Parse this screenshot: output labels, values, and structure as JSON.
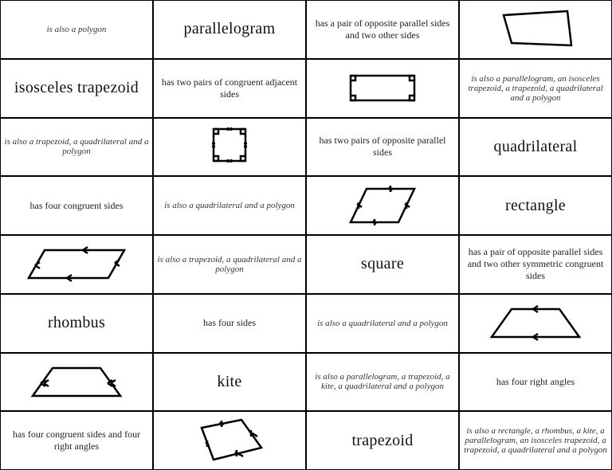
{
  "grid_color": "#000000",
  "bg_color": "#ffffff",
  "stroke": "#000000",
  "cells": [
    {
      "type": "ital",
      "text": "is also a polygon"
    },
    {
      "type": "term",
      "text": "parallelogram"
    },
    {
      "type": "desc",
      "text": "has a pair of opposite parallel sides and two other sides"
    },
    {
      "type": "shape",
      "shape": "quadrilateral"
    },
    {
      "type": "term",
      "text": "isosceles trapezoid"
    },
    {
      "type": "desc",
      "text": "has two pairs\nof congruent adjacent sides"
    },
    {
      "type": "shape",
      "shape": "rectangle"
    },
    {
      "type": "ital",
      "text": "is also a parallelogram, an isosceles trapezoid, a trapezoid, a quadrilateral and a polygon"
    },
    {
      "type": "ital",
      "text": "is also a trapezoid, a quadrilateral and a polygon"
    },
    {
      "type": "shape",
      "shape": "square"
    },
    {
      "type": "desc",
      "text": "has two pairs of opposite parallel sides"
    },
    {
      "type": "term",
      "text": "quadrilateral"
    },
    {
      "type": "desc",
      "text": "has four congruent sides"
    },
    {
      "type": "ital",
      "text": "is also a quadrilateral and a polygon"
    },
    {
      "type": "shape",
      "shape": "parallelogram_ticks"
    },
    {
      "type": "term",
      "text": "rectangle"
    },
    {
      "type": "shape",
      "shape": "parallelogram_arrows"
    },
    {
      "type": "ital",
      "text": "is also a trapezoid, a quadrilateral and a polygon"
    },
    {
      "type": "term",
      "text": "square"
    },
    {
      "type": "desc",
      "text": "has a pair of opposite parallel sides and two other symmetric congruent sides"
    },
    {
      "type": "term",
      "text": "rhombus"
    },
    {
      "type": "desc",
      "text": "has four sides"
    },
    {
      "type": "ital",
      "text": "is also a quadrilateral and a polygon"
    },
    {
      "type": "shape",
      "shape": "trapezoid_arrows"
    },
    {
      "type": "shape",
      "shape": "iso_trapezoid"
    },
    {
      "type": "term",
      "text": "kite"
    },
    {
      "type": "ital",
      "text": "is also a parallelogram, a trapezoid, a kite, a quadrilateral and a polygon"
    },
    {
      "type": "desc",
      "text": "has four right angles"
    },
    {
      "type": "desc",
      "text": "has four congruent sides and four right angles"
    },
    {
      "type": "shape",
      "shape": "kite"
    },
    {
      "type": "term",
      "text": "trapezoid"
    },
    {
      "type": "ital",
      "text": "is also a rectangle, a rhombus, a kite, a parallelogram, an isosceles trapezoid, a trapezoid, a quadrilateral and a polygon"
    }
  ],
  "shapes": {
    "quadrilateral": {
      "w": 110,
      "h": 55,
      "sw": 2.5,
      "paths": [
        "M15,10 L95,5 L100,48 L25,45 Z"
      ]
    },
    "rectangle": {
      "w": 110,
      "h": 55,
      "sw": 2.5,
      "paths": [
        "M15,12 L95,12 L95,43 L15,43 Z",
        "M15,12 L21,12 L21,18 L15,18",
        "M95,12 L89,12 L89,18 L95,18",
        "M95,43 L89,43 L89,37 L95,37",
        "M15,43 L21,43 L21,37 L15,37"
      ]
    },
    "square": {
      "w": 70,
      "h": 60,
      "sw": 2.5,
      "paths": [
        "M15,8 L55,8 L55,48 L15,48 Z",
        "M15,8 L21,8 L21,14 L15,14",
        "M55,8 L49,8 L49,14 L55,14",
        "M55,48 L49,48 L49,42 L55,42",
        "M15,48 L21,48 L21,42 L15,42",
        "M33,8 L37,8 M33,6 L33,10 M37,6 L37,10",
        "M33,48 L37,48 M33,46 L33,50 M37,46 L37,50",
        "M15,26 L15,30 M13,26 L17,26 M13,30 L17,30",
        "M55,26 L55,30 M53,26 L57,26 M53,30 L57,30"
      ]
    },
    "parallelogram_ticks": {
      "w": 100,
      "h": 58,
      "sw": 2.5,
      "paths": [
        "M30,8 L90,8 L70,50 L10,50 Z",
        "M58,6 L62,10 M60,4 L60,12",
        "M38,48 L42,52 M40,46 L40,54",
        "M18,27 L24,31 M20,25 L20,33",
        "M78,27 L84,31 M80,25 L80,33"
      ]
    },
    "parallelogram_arrows": {
      "w": 140,
      "h": 55,
      "sw": 2.5,
      "paths": [
        "M30,10 L130,10 L110,45 L10,45 Z",
        "M78,10 L84,6 M78,10 L84,14",
        "M58,45 L64,41 M58,45 L64,49",
        "M18,29 L24,25 M18,29 L24,33",
        "M118,26 L124,22 M118,26 L124,30"
      ]
    },
    "trapezoid_arrows": {
      "w": 130,
      "h": 55,
      "sw": 2.5,
      "paths": [
        "M35,10 L95,10 L120,45 L10,45 Z",
        "M62,10 L68,6 M62,10 L68,14",
        "M62,45 L68,41 M62,45 L68,49"
      ]
    },
    "iso_trapezoid": {
      "w": 130,
      "h": 55,
      "sw": 2.5,
      "paths": [
        "M35,10 L95,10 L120,45 L10,45 Z",
        "M20,29 L26,25 M20,29 L26,33 M24,29 L30,25 M24,29 L30,33",
        "M104,29 L110,25 M104,29 L110,33 M108,29 L114,25 M108,29 L114,33"
      ]
    },
    "kite": {
      "w": 110,
      "h": 62,
      "sw": 2.5,
      "paths": [
        "M20,15 L70,5 L95,40 L35,55 Z",
        "M43,8 L47,12 M45,6 L45,14",
        "M25,33 L29,37 M27,31 L27,39",
        "M80,20 L86,24 M82,18 L82,26 M84,22 L90,26",
        "M62,45 L68,49 M64,43 L64,51 M66,47 L72,51"
      ]
    }
  }
}
